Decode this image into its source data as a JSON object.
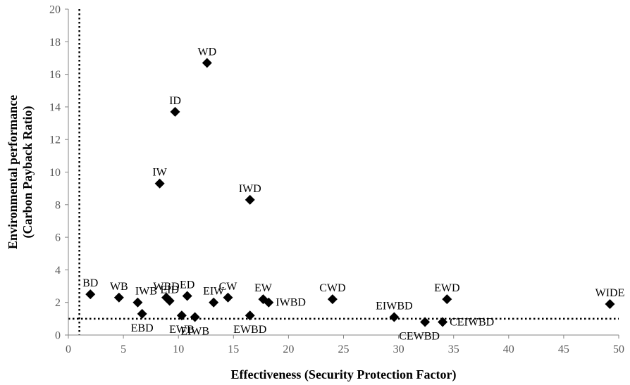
{
  "chart_data": {
    "type": "scatter",
    "xlabel": "Effectiveness (Security Protection Factor)",
    "ylabel_lines": [
      "Environmental performance",
      "(Carbon Payback Ratio)"
    ],
    "xlim": [
      0,
      50
    ],
    "ylim": [
      0,
      20
    ],
    "x_ticks": [
      0,
      5,
      10,
      15,
      20,
      25,
      30,
      35,
      40,
      45,
      50
    ],
    "y_ticks": [
      0,
      2,
      4,
      6,
      8,
      10,
      12,
      14,
      16,
      18,
      20
    ],
    "reference_lines": {
      "vertical_x": 1,
      "horizontal_y": 1,
      "style": "dotted"
    },
    "grid": false,
    "marker": "diamond",
    "marker_color": "#000000",
    "points": [
      {
        "label": "BD",
        "x": 2.0,
        "y": 2.5
      },
      {
        "label": "WB",
        "x": 4.6,
        "y": 2.3
      },
      {
        "label": "IWB",
        "x": 6.3,
        "y": 2.0
      },
      {
        "label": "EBD",
        "x": 6.7,
        "y": 1.3
      },
      {
        "label": "WBD",
        "x": 8.9,
        "y": 2.3
      },
      {
        "label": "EID",
        "x": 9.2,
        "y": 2.1
      },
      {
        "label": "ED",
        "x": 10.8,
        "y": 2.4
      },
      {
        "label": "EWB",
        "x": 10.3,
        "y": 1.2
      },
      {
        "label": "EIWB",
        "x": 11.5,
        "y": 1.1
      },
      {
        "label": "EIW",
        "x": 13.2,
        "y": 2.0
      },
      {
        "label": "CW",
        "x": 14.5,
        "y": 2.3
      },
      {
        "label": "EWBD",
        "x": 16.5,
        "y": 1.2
      },
      {
        "label": "EW",
        "x": 17.7,
        "y": 2.2
      },
      {
        "label": "IWBD",
        "x": 18.2,
        "y": 2.0
      },
      {
        "label": "CWD",
        "x": 24.0,
        "y": 2.2
      },
      {
        "label": "EIWBD",
        "x": 29.6,
        "y": 1.1
      },
      {
        "label": "CEWBD",
        "x": 32.4,
        "y": 0.8
      },
      {
        "label": "CEIWBD",
        "x": 34.0,
        "y": 0.8
      },
      {
        "label": "EWD",
        "x": 34.4,
        "y": 2.2
      },
      {
        "label": "WIDE",
        "x": 49.2,
        "y": 1.9
      },
      {
        "label": "WD",
        "x": 12.6,
        "y": 16.7
      },
      {
        "label": "ID",
        "x": 9.7,
        "y": 13.7
      },
      {
        "label": "IW",
        "x": 8.3,
        "y": 9.3
      },
      {
        "label": "IWD",
        "x": 16.5,
        "y": 8.3
      }
    ],
    "label_anchor": {
      "BD": "above",
      "WB": "above",
      "IWB": "above-right",
      "EBD": "below",
      "WBD": "above",
      "EID": "above",
      "ED": "above",
      "EWB": "below",
      "EIWB": "below",
      "EIW": "above",
      "CW": "above",
      "EWBD": "below",
      "EW": "above",
      "IWBD": "right",
      "CWD": "above",
      "EIWBD": "above",
      "CEWBD": "below-left",
      "CEIWBD": "right",
      "EWD": "above",
      "WIDE": "above",
      "WD": "above",
      "ID": "above",
      "IW": "above",
      "IWD": "above"
    }
  }
}
